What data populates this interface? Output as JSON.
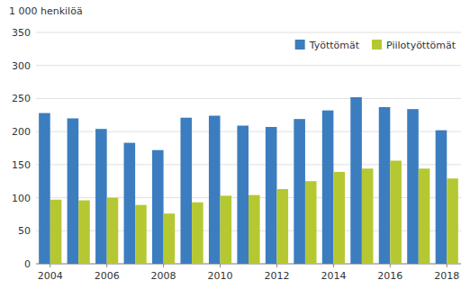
{
  "chart_data": {
    "type": "bar",
    "y_label": "1 000 henkilöä",
    "categories": [
      "2004",
      null,
      "2006",
      null,
      "2008",
      null,
      "2010",
      null,
      "2012",
      null,
      "2014",
      null,
      "2016",
      null,
      "2018"
    ],
    "series": [
      {
        "name": "Työttömät",
        "color": "#3b7dbf",
        "values": [
          228,
          220,
          204,
          183,
          172,
          221,
          224,
          209,
          207,
          219,
          232,
          252,
          237,
          234,
          202
        ]
      },
      {
        "name": "Piilotyöttömät",
        "color": "#b5c832",
        "values": [
          97,
          96,
          100,
          89,
          76,
          93,
          103,
          104,
          113,
          125,
          139,
          144,
          156,
          144,
          129
        ]
      }
    ],
    "ylim": [
      0,
      350
    ],
    "yticks": [
      0,
      50,
      100,
      150,
      200,
      250,
      300,
      350
    ],
    "grid": true,
    "legend": "upper right"
  }
}
